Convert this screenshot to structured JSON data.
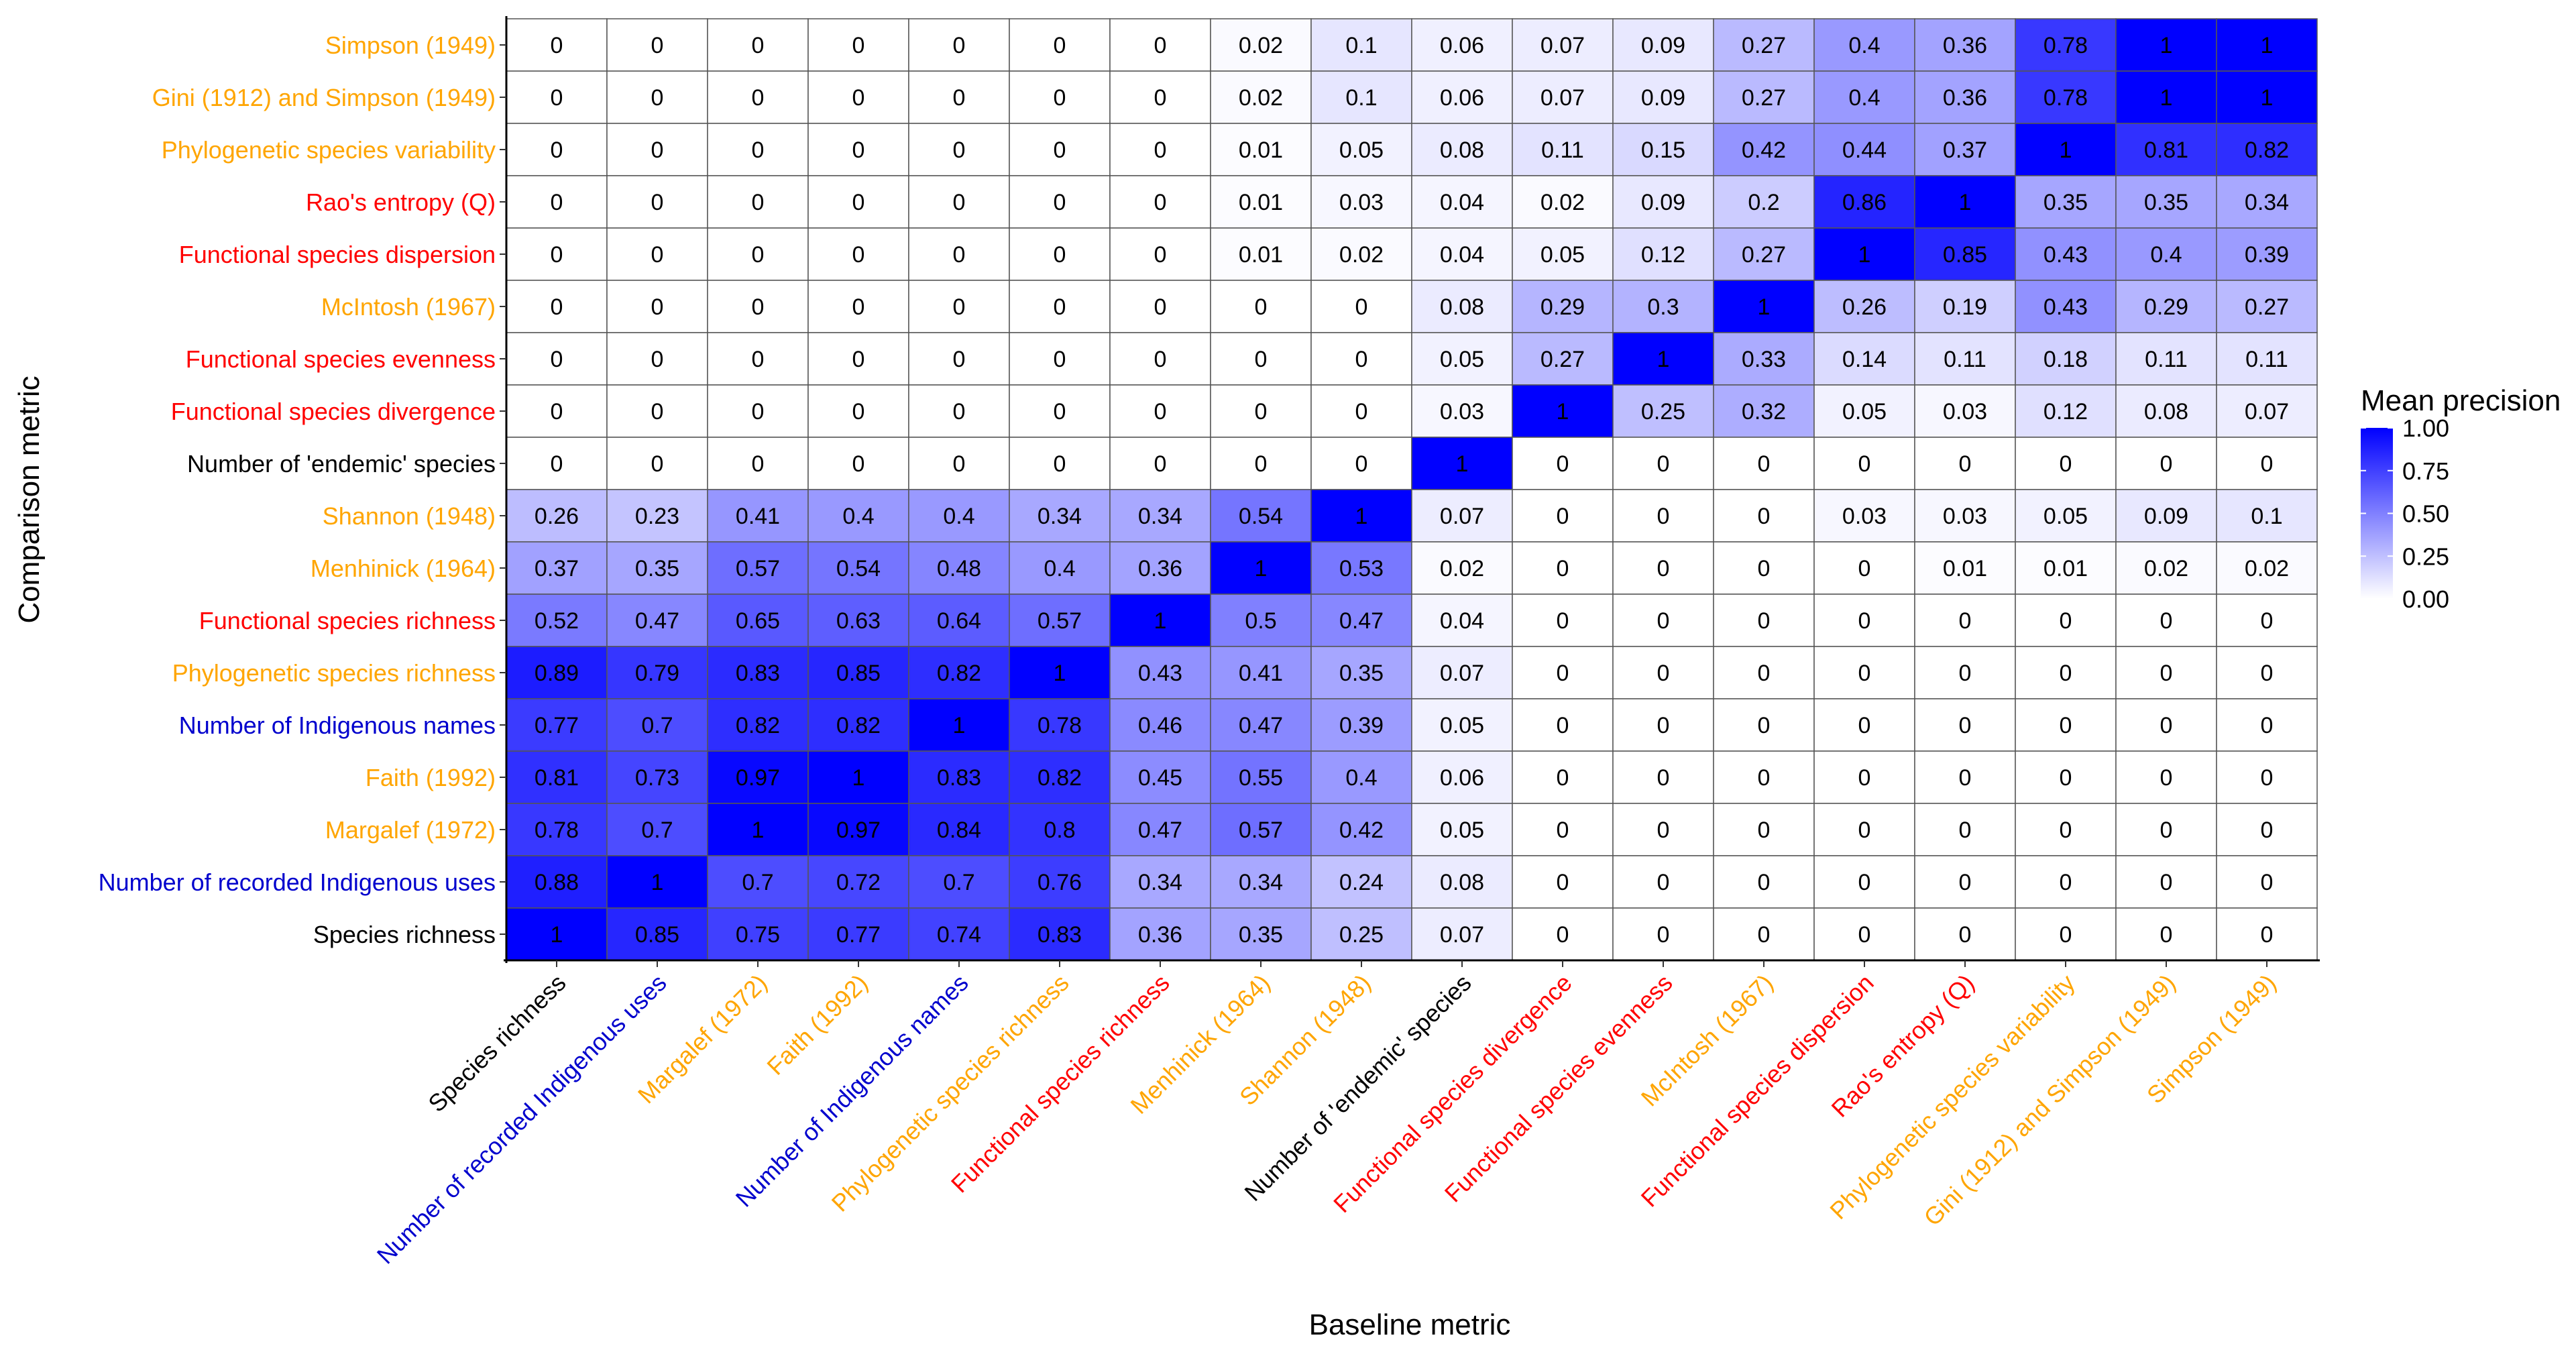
{
  "chart_data": {
    "type": "heatmap",
    "xlabel": "Baseline metric",
    "ylabel": "Comparison metric",
    "legend": {
      "title": "Mean precision",
      "position": "right",
      "low_color": "#ffffff",
      "high_color": "#0000ff",
      "range": [
        0,
        1
      ],
      "ticks": [
        "1.00",
        "0.75",
        "0.50",
        "0.25",
        "0.00"
      ]
    },
    "grid": true,
    "metric_colors": {
      "black": "#000000",
      "blue": "#0000cd",
      "orange": "#ffa500",
      "red": "#ff0000"
    },
    "x_categories": [
      {
        "label": "Species richness",
        "color": "black"
      },
      {
        "label": "Number of recorded Indigenous uses",
        "color": "blue"
      },
      {
        "label": "Margalef (1972)",
        "color": "orange"
      },
      {
        "label": "Faith (1992)",
        "color": "orange"
      },
      {
        "label": "Number of Indigenous names",
        "color": "blue"
      },
      {
        "label": "Phylogenetic species richness",
        "color": "orange"
      },
      {
        "label": "Functional species richness",
        "color": "red"
      },
      {
        "label": "Menhinick (1964)",
        "color": "orange"
      },
      {
        "label": "Shannon (1948)",
        "color": "orange"
      },
      {
        "label": "Number of 'endemic' species",
        "color": "black"
      },
      {
        "label": "Functional species divergence",
        "color": "red"
      },
      {
        "label": "Functional species evenness",
        "color": "red"
      },
      {
        "label": "McIntosh (1967)",
        "color": "orange"
      },
      {
        "label": "Functional species dispersion",
        "color": "red"
      },
      {
        "label": "Rao's entropy (Q)",
        "color": "red"
      },
      {
        "label": "Phylogenetic species variability",
        "color": "orange"
      },
      {
        "label": "Gini (1912) and Simpson (1949)",
        "color": "orange"
      },
      {
        "label": "Simpson (1949)",
        "color": "orange"
      }
    ],
    "y_categories": [
      {
        "label": "Simpson (1949)",
        "color": "orange"
      },
      {
        "label": "Gini (1912) and Simpson (1949)",
        "color": "orange"
      },
      {
        "label": "Phylogenetic species variability",
        "color": "orange"
      },
      {
        "label": "Rao's entropy (Q)",
        "color": "red"
      },
      {
        "label": "Functional species dispersion",
        "color": "red"
      },
      {
        "label": "McIntosh (1967)",
        "color": "orange"
      },
      {
        "label": "Functional species evenness",
        "color": "red"
      },
      {
        "label": "Functional species divergence",
        "color": "red"
      },
      {
        "label": "Number of 'endemic' species",
        "color": "black"
      },
      {
        "label": "Shannon (1948)",
        "color": "orange"
      },
      {
        "label": "Menhinick (1964)",
        "color": "orange"
      },
      {
        "label": "Functional species richness",
        "color": "red"
      },
      {
        "label": "Phylogenetic species richness",
        "color": "orange"
      },
      {
        "label": "Number of Indigenous names",
        "color": "blue"
      },
      {
        "label": "Faith (1992)",
        "color": "orange"
      },
      {
        "label": "Margalef (1972)",
        "color": "orange"
      },
      {
        "label": "Number of recorded Indigenous uses",
        "color": "blue"
      },
      {
        "label": "Species richness",
        "color": "black"
      }
    ],
    "values": [
      [
        0,
        0,
        0,
        0,
        0,
        0,
        0,
        0.02,
        0.1,
        0.06,
        0.07,
        0.09,
        0.27,
        0.4,
        0.36,
        0.78,
        1,
        1
      ],
      [
        0,
        0,
        0,
        0,
        0,
        0,
        0,
        0.02,
        0.1,
        0.06,
        0.07,
        0.09,
        0.27,
        0.4,
        0.36,
        0.78,
        1,
        1
      ],
      [
        0,
        0,
        0,
        0,
        0,
        0,
        0,
        0.01,
        0.05,
        0.08,
        0.11,
        0.15,
        0.42,
        0.44,
        0.37,
        1,
        0.81,
        0.82
      ],
      [
        0,
        0,
        0,
        0,
        0,
        0,
        0,
        0.01,
        0.03,
        0.04,
        0.02,
        0.09,
        0.2,
        0.86,
        1,
        0.35,
        0.35,
        0.34
      ],
      [
        0,
        0,
        0,
        0,
        0,
        0,
        0,
        0.01,
        0.02,
        0.04,
        0.05,
        0.12,
        0.27,
        1,
        0.85,
        0.43,
        0.4,
        0.39
      ],
      [
        0,
        0,
        0,
        0,
        0,
        0,
        0,
        0,
        0,
        0.08,
        0.29,
        0.3,
        1,
        0.26,
        0.19,
        0.43,
        0.29,
        0.27
      ],
      [
        0,
        0,
        0,
        0,
        0,
        0,
        0,
        0,
        0,
        0.05,
        0.27,
        1,
        0.33,
        0.14,
        0.11,
        0.18,
        0.11,
        0.11
      ],
      [
        0,
        0,
        0,
        0,
        0,
        0,
        0,
        0,
        0,
        0.03,
        1,
        0.25,
        0.32,
        0.05,
        0.03,
        0.12,
        0.08,
        0.07
      ],
      [
        0,
        0,
        0,
        0,
        0,
        0,
        0,
        0,
        0,
        1,
        0,
        0,
        0,
        0,
        0,
        0,
        0,
        0
      ],
      [
        0.26,
        0.23,
        0.41,
        0.4,
        0.4,
        0.34,
        0.34,
        0.54,
        1,
        0.07,
        0,
        0,
        0,
        0.03,
        0.03,
        0.05,
        0.09,
        0.1
      ],
      [
        0.37,
        0.35,
        0.57,
        0.54,
        0.48,
        0.4,
        0.36,
        1,
        0.53,
        0.02,
        0,
        0,
        0,
        0,
        0.01,
        0.01,
        0.02,
        0.02
      ],
      [
        0.52,
        0.47,
        0.65,
        0.63,
        0.64,
        0.57,
        1,
        0.5,
        0.47,
        0.04,
        0,
        0,
        0,
        0,
        0,
        0,
        0,
        0
      ],
      [
        0.89,
        0.79,
        0.83,
        0.85,
        0.82,
        1,
        0.43,
        0.41,
        0.35,
        0.07,
        0,
        0,
        0,
        0,
        0,
        0,
        0,
        0
      ],
      [
        0.77,
        0.7,
        0.82,
        0.82,
        1,
        0.78,
        0.46,
        0.47,
        0.39,
        0.05,
        0,
        0,
        0,
        0,
        0,
        0,
        0,
        0
      ],
      [
        0.81,
        0.73,
        0.97,
        1,
        0.83,
        0.82,
        0.45,
        0.55,
        0.4,
        0.06,
        0,
        0,
        0,
        0,
        0,
        0,
        0,
        0
      ],
      [
        0.78,
        0.7,
        1,
        0.97,
        0.84,
        0.8,
        0.47,
        0.57,
        0.42,
        0.05,
        0,
        0,
        0,
        0,
        0,
        0,
        0,
        0
      ],
      [
        0.88,
        1,
        0.7,
        0.72,
        0.7,
        0.76,
        0.34,
        0.34,
        0.24,
        0.08,
        0,
        0,
        0,
        0,
        0,
        0,
        0,
        0
      ],
      [
        1,
        0.85,
        0.75,
        0.77,
        0.74,
        0.83,
        0.36,
        0.35,
        0.25,
        0.07,
        0,
        0,
        0,
        0,
        0,
        0,
        0,
        0
      ]
    ]
  }
}
